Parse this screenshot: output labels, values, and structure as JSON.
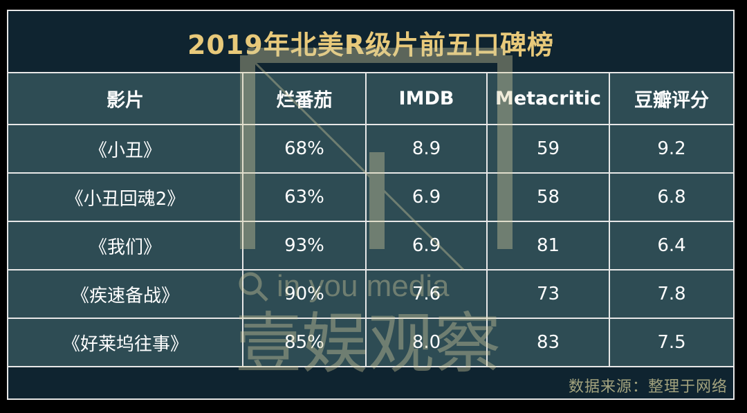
{
  "chart_data": {
    "type": "table",
    "title": "2019年北美R级片前五口碑榜",
    "columns": [
      "影片",
      "烂番茄",
      "IMDB",
      "Metacritic",
      "豆瓣评分"
    ],
    "rows": [
      [
        "《小丑》",
        "68%",
        "8.9",
        "59",
        "9.2"
      ],
      [
        "《小丑回魂2》",
        "63%",
        "6.9",
        "58",
        "6.8"
      ],
      [
        "《我们》",
        "93%",
        "6.9",
        "81",
        "6.4"
      ],
      [
        "《疾速备战》",
        "90%",
        "7.6",
        "73",
        "7.8"
      ],
      [
        "《好莱坞往事》",
        "85%",
        "8.0",
        "83",
        "7.5"
      ]
    ],
    "source_note": "数据来源：整理于网络"
  },
  "watermark": {
    "tagline": "in you media",
    "brand": "壹娱观察"
  },
  "colors": {
    "title": "#e8c97a",
    "cell_background": "#2e4c54",
    "frame_background": "#0f2430",
    "border": "#e8e8e8",
    "source_text": "#a3a37e"
  }
}
